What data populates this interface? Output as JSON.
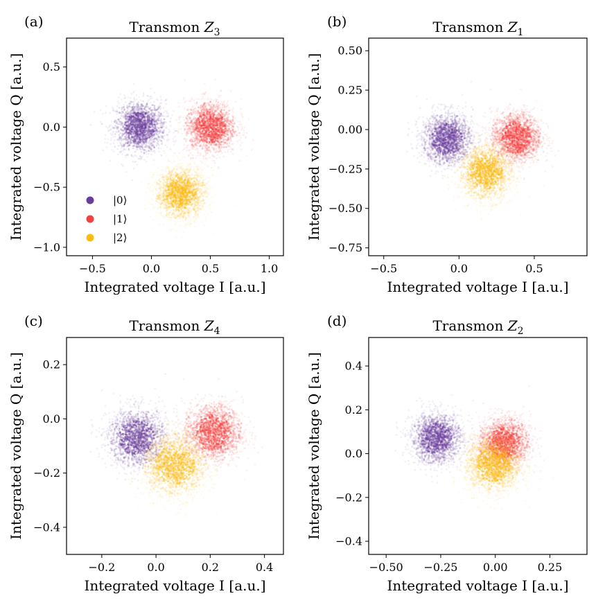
{
  "figure": {
    "legend": [
      {
        "label": "|0⟩",
        "color": "#6a3d9a"
      },
      {
        "label": "|1⟩",
        "color": "#f44040"
      },
      {
        "label": "|2⟩",
        "color": "#fdbb12"
      }
    ]
  },
  "chart_data": [
    {
      "type": "scatter",
      "panel_label": "(a)",
      "title": "Transmon Z3",
      "xlabel": "Integrated voltage I [a.u.]",
      "ylabel": "Integrated voltage Q [a.u.]",
      "xlim": [
        -0.72,
        1.12
      ],
      "ylim": [
        -1.07,
        0.74
      ],
      "xticks": [
        -0.5,
        0.0,
        0.5,
        1.0
      ],
      "xtick_labels": [
        "−0.5",
        "0.0",
        "0.5",
        "1.0"
      ],
      "yticks": [
        0.5,
        0.0,
        -0.5,
        -1.0
      ],
      "ytick_labels": [
        "0.5",
        "0.0",
        "−0.5",
        "−1.0"
      ],
      "legend_position": "lower-left",
      "series": [
        {
          "name": "|0⟩",
          "center": [
            -0.1,
            0.0
          ],
          "spread": 0.11,
          "color": "#6a3d9a"
        },
        {
          "name": "|1⟩",
          "center": [
            0.5,
            0.0
          ],
          "spread": 0.11,
          "color": "#f44040"
        },
        {
          "name": "|2⟩",
          "center": [
            0.25,
            -0.55
          ],
          "spread": 0.11,
          "color": "#fdbb12"
        }
      ]
    },
    {
      "type": "scatter",
      "panel_label": "(b)",
      "title": "Transmon Z1",
      "xlabel": "Integrated voltage I [a.u.]",
      "ylabel": "Integrated voltage Q [a.u.]",
      "xlim": [
        -0.6,
        0.85
      ],
      "ylim": [
        -0.8,
        0.58
      ],
      "xticks": [
        -0.5,
        0.0,
        0.5
      ],
      "xtick_labels": [
        "−0.5",
        "0.0",
        "0.5"
      ],
      "yticks": [
        0.5,
        0.25,
        0.0,
        -0.25,
        -0.5,
        -0.75
      ],
      "ytick_labels": [
        "0.50",
        "0.25",
        "0.00",
        "−0.25",
        "−0.50",
        "−0.75"
      ],
      "series": [
        {
          "name": "|0⟩",
          "center": [
            -0.08,
            -0.06
          ],
          "spread": 0.085,
          "color": "#6a3d9a"
        },
        {
          "name": "|1⟩",
          "center": [
            0.38,
            -0.05
          ],
          "spread": 0.085,
          "color": "#f44040"
        },
        {
          "name": "|2⟩",
          "center": [
            0.18,
            -0.27
          ],
          "spread": 0.09,
          "color": "#fdbb12"
        }
      ]
    },
    {
      "type": "scatter",
      "panel_label": "(c)",
      "title": "Transmon Z4",
      "xlabel": "Integrated voltage I [a.u.]",
      "ylabel": "Integrated voltage Q [a.u.]",
      "xlim": [
        -0.33,
        0.47
      ],
      "ylim": [
        -0.5,
        0.3
      ],
      "xticks": [
        -0.2,
        0.0,
        0.2,
        0.4
      ],
      "xtick_labels": [
        "−0.2",
        "0.0",
        "0.2",
        "0.4"
      ],
      "yticks": [
        0.2,
        0.0,
        -0.2,
        -0.4
      ],
      "ytick_labels": [
        "0.2",
        "0.0",
        "−0.2",
        "−0.4"
      ],
      "series": [
        {
          "name": "|0⟩",
          "center": [
            -0.07,
            -0.07
          ],
          "spread": 0.055,
          "color": "#6a3d9a"
        },
        {
          "name": "|1⟩",
          "center": [
            0.21,
            -0.05
          ],
          "spread": 0.055,
          "color": "#f44040"
        },
        {
          "name": "|2⟩",
          "center": [
            0.07,
            -0.17
          ],
          "spread": 0.06,
          "color": "#fdbb12"
        }
      ]
    },
    {
      "type": "scatter",
      "panel_label": "(d)",
      "title": "Transmon Z2",
      "xlabel": "Integrated voltage I [a.u.]",
      "ylabel": "Integrated voltage Q [a.u.]",
      "xlim": [
        -0.58,
        0.42
      ],
      "ylim": [
        -0.46,
        0.53
      ],
      "xticks": [
        -0.5,
        -0.25,
        0.0,
        0.25
      ],
      "xtick_labels": [
        "−0.50",
        "−0.25",
        "0.00",
        "0.25"
      ],
      "yticks": [
        0.4,
        0.2,
        0.0,
        -0.2,
        -0.4
      ],
      "ytick_labels": [
        "0.4",
        "0.2",
        "0.0",
        "−0.2",
        "−0.4"
      ],
      "series": [
        {
          "name": "|0⟩",
          "center": [
            -0.27,
            0.07
          ],
          "spread": 0.06,
          "color": "#6a3d9a"
        },
        {
          "name": "|1⟩",
          "center": [
            0.04,
            0.05
          ],
          "spread": 0.06,
          "color": "#f44040"
        },
        {
          "name": "|2⟩",
          "center": [
            -0.01,
            -0.05
          ],
          "spread": 0.065,
          "color": "#fdbb12"
        }
      ]
    }
  ]
}
